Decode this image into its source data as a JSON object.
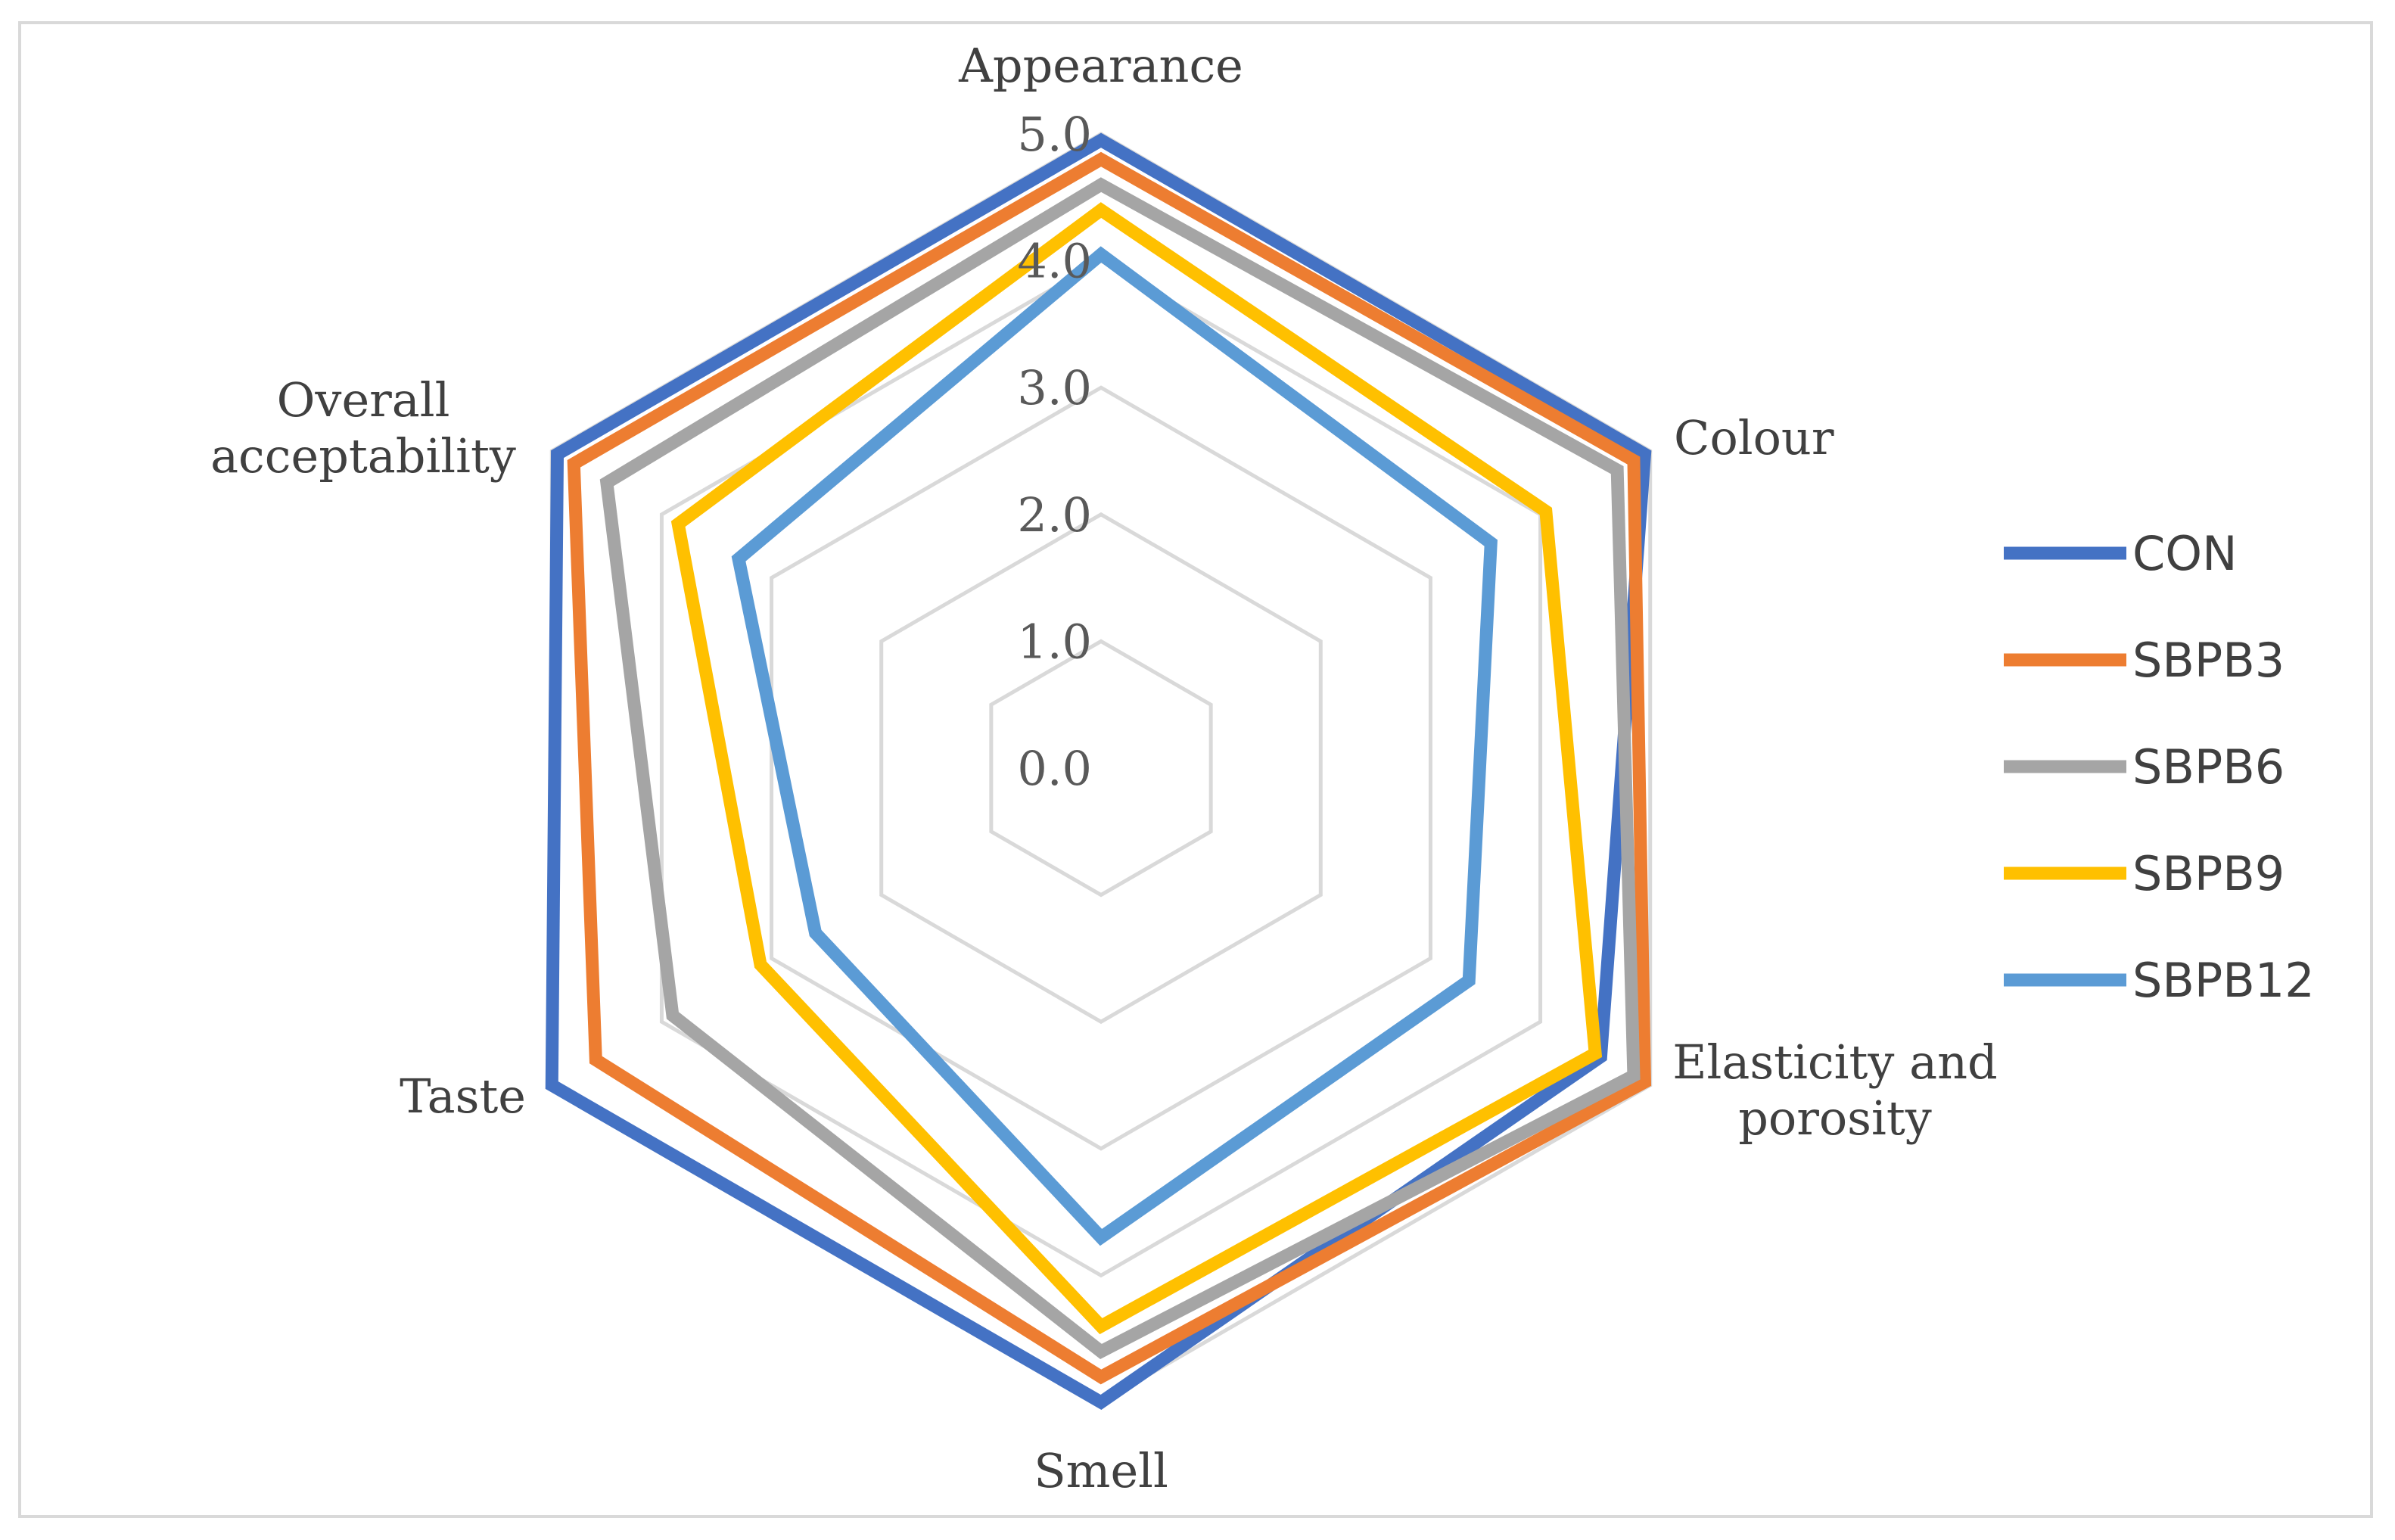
{
  "chart_data": {
    "type": "radar",
    "axes": [
      "Appearance",
      "Colour",
      "Elasticity and porosity",
      "Smell",
      "Taste",
      "Overall acceptability"
    ],
    "axis_label_lines": [
      [
        "Appearance"
      ],
      [
        "Colour"
      ],
      [
        "Elasticity and",
        "porosity"
      ],
      [
        "Smell"
      ],
      [
        "Taste"
      ],
      [
        "Overall",
        "acceptability"
      ]
    ],
    "rlim": [
      0,
      5
    ],
    "ticks": [
      "0.0",
      "1.0",
      "2.0",
      "3.0",
      "4.0",
      "5.0"
    ],
    "tick_values": [
      0,
      1,
      2,
      3,
      4,
      5
    ],
    "grid": true,
    "legend_position": "right",
    "series": [
      {
        "name": "CON",
        "color": "#4472C4",
        "values": [
          4.95,
          4.95,
          4.55,
          5.0,
          5.0,
          4.95
        ]
      },
      {
        "name": "SBPB3",
        "color": "#ED7D31",
        "values": [
          4.8,
          4.85,
          4.95,
          4.8,
          4.6,
          4.8
        ]
      },
      {
        "name": "SBPB6",
        "color": "#A5A5A5",
        "values": [
          4.6,
          4.7,
          4.85,
          4.6,
          3.9,
          4.5
        ]
      },
      {
        "name": "SBPB9",
        "color": "#FFC000",
        "values": [
          4.4,
          4.05,
          4.5,
          4.4,
          3.1,
          3.85
        ]
      },
      {
        "name": "SBPB12",
        "color": "#5B9BD5",
        "values": [
          4.05,
          3.55,
          3.35,
          3.7,
          2.6,
          3.3
        ]
      }
    ]
  }
}
